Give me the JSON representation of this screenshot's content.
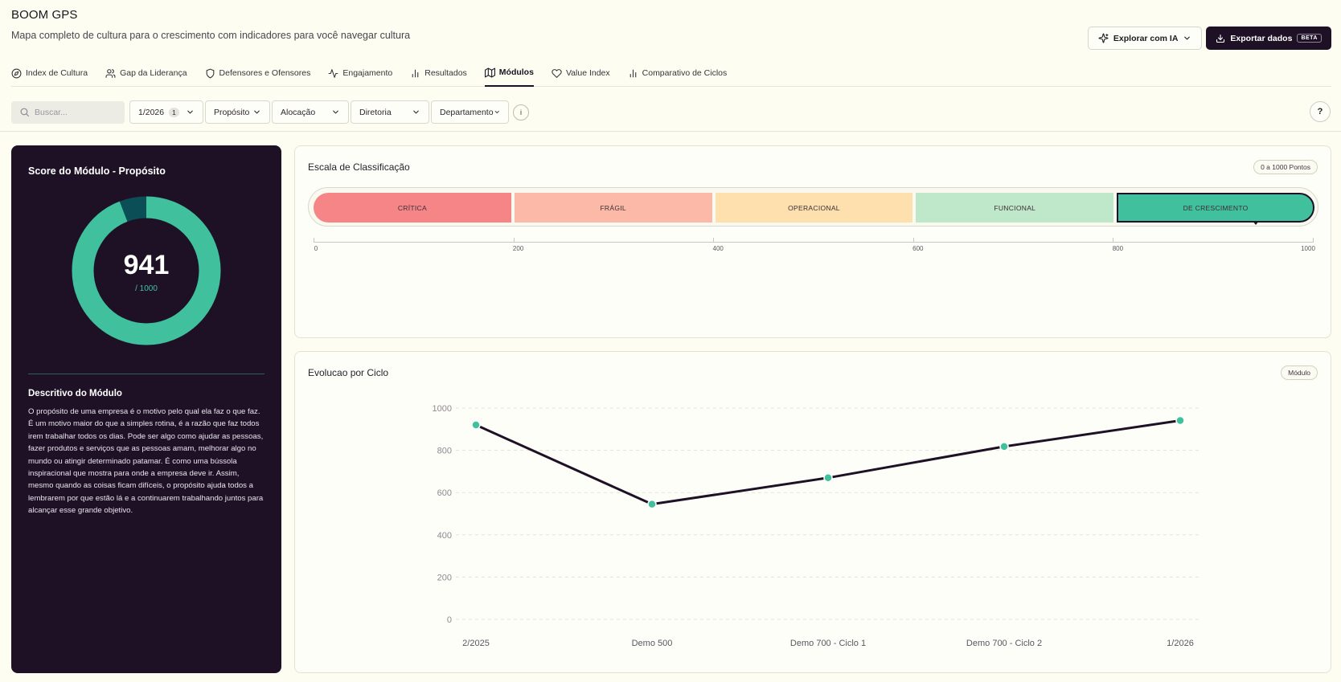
{
  "app": {
    "title": "BOOM GPS",
    "subtitle": "Mapa completo de cultura para o crescimento com indicadores para você navegar cultura"
  },
  "actions": {
    "explore_label": "Explorar com IA",
    "export_label": "Exportar dados",
    "export_badge": "BETA"
  },
  "tabs": [
    {
      "label": "Index de Cultura",
      "icon": "compass-icon"
    },
    {
      "label": "Gap da Liderança",
      "icon": "users-icon"
    },
    {
      "label": "Defensores e Ofensores",
      "icon": "shield-icon"
    },
    {
      "label": "Engajamento",
      "icon": "activity-icon"
    },
    {
      "label": "Resultados",
      "icon": "bar-chart-icon"
    },
    {
      "label": "Módulos",
      "icon": "map-icon",
      "active": true
    },
    {
      "label": "Value Index",
      "icon": "heart-icon"
    },
    {
      "label": "Comparativo de Ciclos",
      "icon": "bar-chart-icon"
    }
  ],
  "filters": {
    "search_placeholder": "Buscar...",
    "cycle": "1/2026",
    "cycle_count": "1",
    "proposito": "Propósito",
    "alocacao": "Alocação",
    "diretoria": "Diretoria",
    "departamento": "Departamento",
    "info": "i",
    "help": "?"
  },
  "score": {
    "title": "Score do Módulo - Propósito",
    "value": "941",
    "max_label": "/ 1000",
    "fraction": 0.941,
    "colors": {
      "fill": "#40c09c",
      "rest": "#0b4e55",
      "bg": "#1e1126"
    },
    "desc_title": "Descritivo do Módulo",
    "desc_text": "O propósito de uma empresa é o motivo pelo qual ela faz o que faz. É um motivo maior do que a simples rotina, é a razão que faz todos irem trabalhar todos os dias. Pode ser algo como ajudar as pessoas, fazer produtos e serviços que as pessoas amam, melhorar algo no mundo ou atingir determinado patamar. É como uma bússola inspiracional que mostra para onde a empresa deve ir. Assim, mesmo quando as coisas ficam difíceis, o propósito ajuda todos a lembrarem por que estão lá e a continuarem trabalhando juntos para alcançar esse grande objetivo."
  },
  "scale": {
    "title": "Escala de Classificação",
    "range_label": "0 a 1000 Pontos",
    "current_value": 941,
    "segments": [
      {
        "label": "CRÍTICA",
        "color": "#f58586"
      },
      {
        "label": "FRÁGIL",
        "color": "#fdb9a7"
      },
      {
        "label": "OPERACIONAL",
        "color": "#fde0ad"
      },
      {
        "label": "FUNCIONAL",
        "color": "#bfe8ca"
      },
      {
        "label": "DE CRESCIMENTO",
        "color": "#40c09c",
        "active": true
      }
    ],
    "ticks": [
      "0",
      "200",
      "400",
      "600",
      "800",
      "1000"
    ]
  },
  "evolution": {
    "title": "Evolucao por Ciclo",
    "badge": "Módulo"
  },
  "chart_data": {
    "type": "line",
    "title": "Evolucao por Ciclo",
    "categories": [
      "2/2025",
      "Demo 500",
      "Demo 700 - Ciclo 1",
      "Demo 700 - Ciclo 2",
      "1/2026"
    ],
    "values": [
      920,
      545,
      670,
      818,
      941
    ],
    "ylim": [
      0,
      1000
    ],
    "yticks": [
      "0",
      "200",
      "400",
      "600",
      "800",
      "1000"
    ],
    "grid": true,
    "line_color": "#1e1126",
    "point_color": "#40c09c"
  }
}
